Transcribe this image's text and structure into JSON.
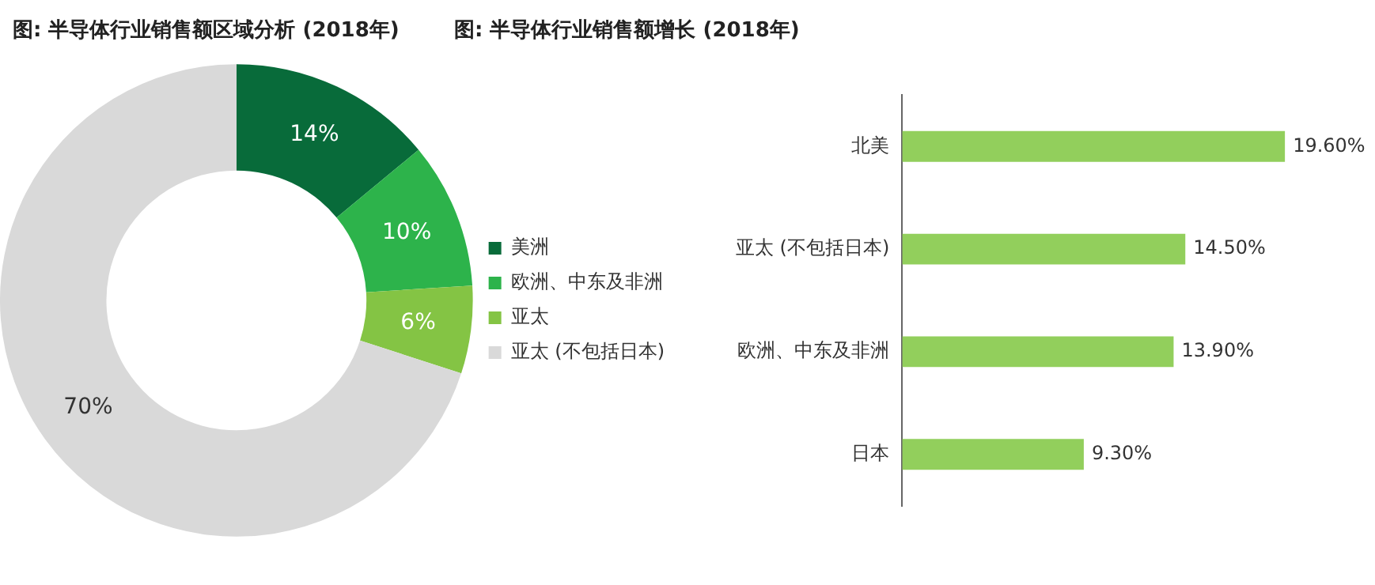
{
  "chart_data": [
    {
      "type": "donut",
      "title": "图: 半导体行业销售额区域分析 (2018年)",
      "categories": [
        "美洲",
        "欧洲、中东及非洲",
        "亚太",
        "亚太 (不包括日本)"
      ],
      "values": [
        14,
        10,
        6,
        70
      ],
      "value_labels": [
        "14%",
        "10%",
        "6%",
        "70%"
      ],
      "colors": [
        "#086b3a",
        "#2db34b",
        "#84c444",
        "#d9d9d9"
      ],
      "legend": "right"
    },
    {
      "type": "bar",
      "orientation": "horizontal",
      "title": "图: 半导体行业销售额增长 (2018年)",
      "categories": [
        "北美",
        "亚太 (不包括日本)",
        "欧洲、中东及非洲",
        "日本"
      ],
      "values": [
        19.6,
        14.5,
        13.9,
        9.3
      ],
      "value_labels": [
        "19.60%",
        "14.50%",
        "13.90%",
        "9.30%"
      ],
      "color": "#92cf5c",
      "tick_labels": "y",
      "grid": false,
      "legend": false
    }
  ]
}
